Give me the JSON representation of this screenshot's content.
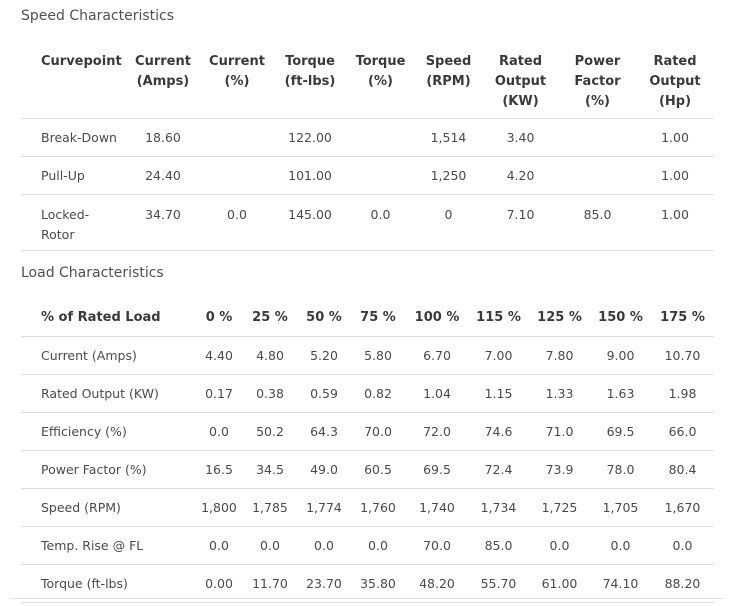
{
  "speed": {
    "title": "Speed Characteristics",
    "headers": [
      [
        "Curvepoint"
      ],
      [
        "Current",
        "(Amps)"
      ],
      [
        "Current",
        "(%)"
      ],
      [
        "Torque",
        "(ft-lbs)"
      ],
      [
        "Torque",
        "(%)"
      ],
      [
        "Speed",
        "(RPM)"
      ],
      [
        "Rated",
        "Output",
        "(KW)"
      ],
      [
        "Power",
        "Factor",
        "(%)"
      ],
      [
        "Rated",
        "Output",
        "(Hp)"
      ]
    ],
    "rows": [
      [
        "Break-Down",
        "18.60",
        "",
        "122.00",
        "",
        "1,514",
        "3.40",
        "",
        "1.00"
      ],
      [
        "Pull-Up",
        "24.40",
        "",
        "101.00",
        "",
        "1,250",
        "4.20",
        "",
        "1.00"
      ],
      [
        [
          "Locked-",
          "Rotor"
        ],
        "34.70",
        "0.0",
        "145.00",
        "0.0",
        "0",
        "7.10",
        "85.0",
        "1.00"
      ]
    ]
  },
  "load": {
    "title": "Load Characteristics",
    "headers": [
      "% of Rated Load",
      "0 %",
      "25 %",
      "50 %",
      "75 %",
      "100 %",
      "115 %",
      "125 %",
      "150 %",
      "175 %"
    ],
    "rows": [
      [
        "Current (Amps)",
        "4.40",
        "4.80",
        "5.20",
        "5.80",
        "6.70",
        "7.00",
        "7.80",
        "9.00",
        "10.70"
      ],
      [
        "Rated Output (KW)",
        "0.17",
        "0.38",
        "0.59",
        "0.82",
        "1.04",
        "1.15",
        "1.33",
        "1.63",
        "1.98"
      ],
      [
        "Efficiency (%)",
        "0.0",
        "50.2",
        "64.3",
        "70.0",
        "72.0",
        "74.6",
        "71.0",
        "69.5",
        "66.0"
      ],
      [
        "Power Factor (%)",
        "16.5",
        "34.5",
        "49.0",
        "60.5",
        "69.5",
        "72.4",
        "73.9",
        "78.0",
        "80.4"
      ],
      [
        "Speed (RPM)",
        "1,800",
        "1,785",
        "1,774",
        "1,760",
        "1,740",
        "1,734",
        "1,725",
        "1,705",
        "1,670"
      ],
      [
        "Temp. Rise @ FL",
        "0.0",
        "0.0",
        "0.0",
        "0.0",
        "70.0",
        "85.0",
        "0.0",
        "0.0",
        "0.0"
      ],
      [
        "Torque (ft-lbs)",
        "0.00",
        "11.70",
        "23.70",
        "35.80",
        "48.20",
        "55.70",
        "61.00",
        "74.10",
        "88.20"
      ]
    ]
  }
}
